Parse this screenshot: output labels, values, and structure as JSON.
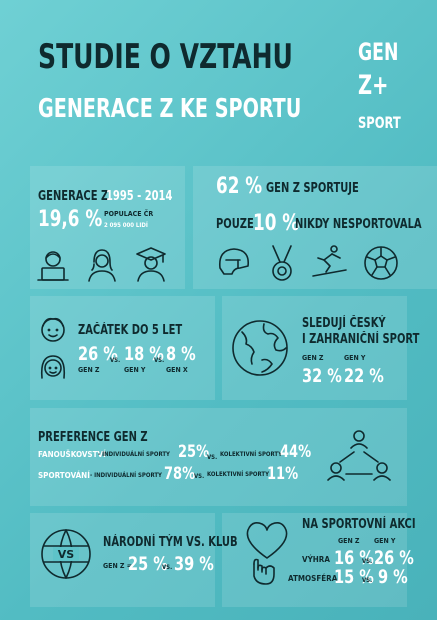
{
  "header": {
    "title_line1": "STUDIE O VZTAHU",
    "title_line2": "GENERACE Z KE SPORTU"
  },
  "logo": {
    "line1": "GEN",
    "line2": "Z+",
    "line3": "SPORT"
  },
  "gen_z_years": {
    "label": "GENERACE Z",
    "years": "1995 - 2014",
    "percent": "19,6 %",
    "population_label": "POPULACE ČR",
    "population_value": "2 095 000 LIDÍ"
  },
  "sport_stats": {
    "line1_value": "62 %",
    "line1_text": "GEN Z SPORTUJE",
    "line2_prefix": "POUZE",
    "line2_value": "10 %",
    "line2_text": "NIKDY NESPORTOVALA"
  },
  "start": {
    "title": "ZAČÁTEK DO 5 LET",
    "values": [
      {
        "value": "26 %",
        "label": "GEN Z"
      },
      {
        "value": "18 %",
        "label": "GEN Y"
      },
      {
        "value": "8 %",
        "label": "GEN X"
      }
    ],
    "vs": "VS."
  },
  "watch": {
    "title_line1": "SLEDUJÍ ČESKÝ",
    "title_line2": "I ZAHRANIČNÍ SPORT",
    "values": [
      {
        "label": "GEN Z",
        "value": "32 %"
      },
      {
        "label": "GEN Y",
        "value": "22 %"
      }
    ]
  },
  "preference": {
    "title": "PREFERENCE GEN Z",
    "rows": [
      {
        "label": "FANOUŠKOVSTVÍ",
        "individual_label": "- INDIVIDUÁLNÍ SPORTY",
        "individual_value": "25%",
        "vs": "VS.",
        "collective_label": "KOLEKTIVNÍ SPORTY",
        "collective_value": "44%"
      },
      {
        "label": "SPORTOVÁNÍ",
        "individual_label": "- INDIVIDUÁLNÍ SPORTY",
        "individual_value": "78%",
        "vs": "VS.",
        "collective_label": "KOLEKTIVNÍ SPORTY",
        "collective_value": "11%"
      }
    ]
  },
  "national": {
    "title": "NÁRODNÍ TÝM VS. KLUB",
    "prefix": "GEN Z =",
    "value1": "25 %",
    "vs": "VS.",
    "value2": "39 %"
  },
  "event": {
    "title": "NA SPORTOVNÍ AKCI",
    "col1": "GEN Z",
    "col2": "GEN Y",
    "rows": [
      {
        "label": "VÝHRA",
        "z": "16 %",
        "vs": "VS.",
        "y": "26 %"
      },
      {
        "label": "ATMOSFÉRA",
        "z": "15 %",
        "vs": "VS.",
        "y": "9 %"
      }
    ]
  },
  "icons": [
    "laptop-person-icon",
    "girl-person-icon",
    "graduate-icon",
    "helmet-icon",
    "medal-icon",
    "snowboard-icon",
    "football-icon",
    "boy-face-icon",
    "girl-face-icon",
    "globe-icon",
    "network-people-icon",
    "vs-globe-icon",
    "heart-hand-icon"
  ]
}
